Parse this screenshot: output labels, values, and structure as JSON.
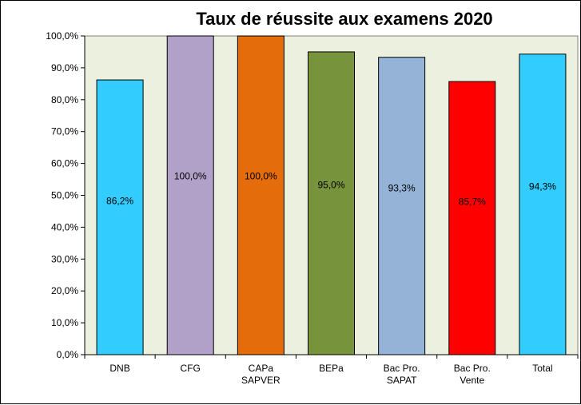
{
  "chart_data": {
    "type": "bar",
    "title": "Taux de réussite aux examens 2020",
    "categories": [
      [
        "DNB"
      ],
      [
        "CFG"
      ],
      [
        "CAPa",
        "SAPVER"
      ],
      [
        "BEPa"
      ],
      [
        "Bac Pro.",
        "SAPAT"
      ],
      [
        "Bac Pro.",
        "Vente"
      ],
      [
        "Total"
      ]
    ],
    "values": [
      86.2,
      100.0,
      100.0,
      95.0,
      93.3,
      85.7,
      94.3
    ],
    "data_labels": [
      "86,2%",
      "100,0%",
      "100,0%",
      "95,0%",
      "93,3%",
      "85,7%",
      "94,3%"
    ],
    "bar_colors": [
      "#33CCFF",
      "#B1A0C7",
      "#E46C0A",
      "#77933C",
      "#95B3D7",
      "#FF0000",
      "#33CCFF"
    ],
    "ylim": [
      0,
      100
    ],
    "yticks": [
      0,
      10,
      20,
      30,
      40,
      50,
      60,
      70,
      80,
      90,
      100
    ],
    "ytick_labels": [
      "0,0%",
      "10,0%",
      "20,0%",
      "30,0%",
      "40,0%",
      "50,0%",
      "60,0%",
      "70,0%",
      "80,0%",
      "90,0%",
      "100,0%"
    ],
    "plot_background": "#EBF1DE",
    "grid": false,
    "legend": "none",
    "xlabel": "",
    "ylabel": ""
  }
}
